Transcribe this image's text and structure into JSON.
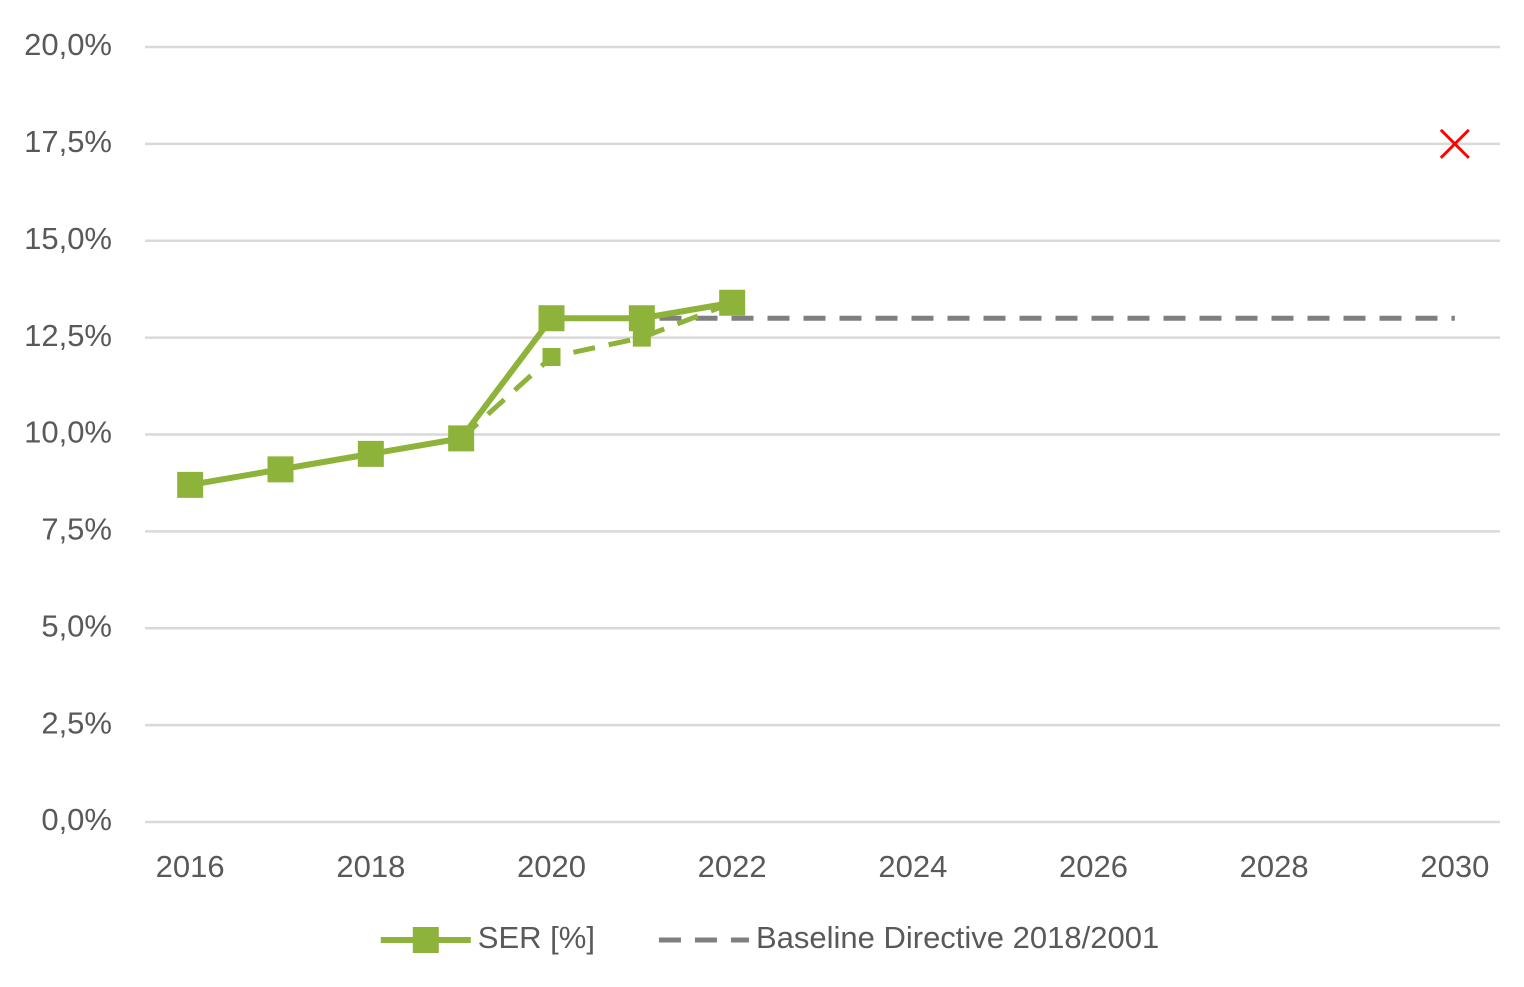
{
  "chart_data": {
    "type": "line",
    "xlim": [
      2015.5,
      2030.5
    ],
    "xticks": [
      2016,
      2018,
      2020,
      2022,
      2024,
      2026,
      2028,
      2030
    ],
    "ylim": [
      0,
      20
    ],
    "yticks": [
      {
        "value": 0,
        "label": "0,0%"
      },
      {
        "value": 2.5,
        "label": "2,5%"
      },
      {
        "value": 5,
        "label": "5,0%"
      },
      {
        "value": 7.5,
        "label": "7,5%"
      },
      {
        "value": 10,
        "label": "10,0%"
      },
      {
        "value": 12.5,
        "label": "12,5%"
      },
      {
        "value": 15,
        "label": "15,0%"
      },
      {
        "value": 17.5,
        "label": "17,5%"
      },
      {
        "value": 20,
        "label": "20,0%"
      }
    ],
    "grid": true,
    "legend": "bottom",
    "series": [
      {
        "name": "SER [%]",
        "color": "#8db33a",
        "dash": false,
        "marker": "square",
        "x": [
          2016,
          2017,
          2018,
          2019,
          2020,
          2021,
          2022
        ],
        "values": [
          8.7,
          9.1,
          9.5,
          9.9,
          13.0,
          13.0,
          13.4
        ]
      },
      {
        "color": "#8db33a",
        "dash": true,
        "marker": "small-square",
        "x": [
          2019,
          2020,
          2021,
          2022
        ],
        "values": [
          9.9,
          12.0,
          12.5,
          13.4
        ]
      },
      {
        "name": "Baseline Directive 2018/2001",
        "color": "#7f7f7f",
        "dash": true,
        "marker": "none",
        "x": [
          2020,
          2030
        ],
        "values": [
          13.0,
          13.0
        ]
      },
      {
        "color": "#ff0000",
        "dash": false,
        "marker": "cross",
        "line": false,
        "x": [
          2030
        ],
        "values": [
          17.5
        ]
      }
    ]
  }
}
